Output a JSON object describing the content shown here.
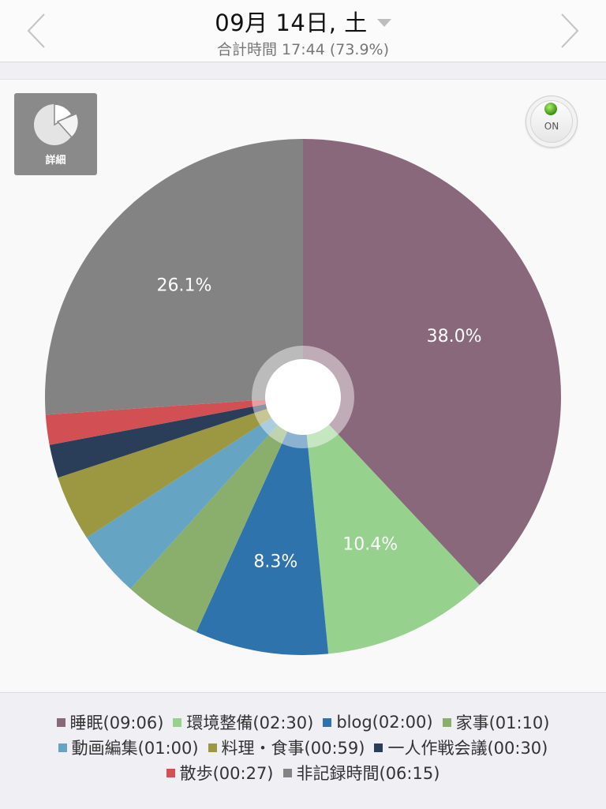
{
  "header": {
    "date": "09月 14日, 土",
    "total": "合計時間 17:44 (73.9%)"
  },
  "buttons": {
    "detail_label": "詳細",
    "on_label": "ON"
  },
  "chart_data": {
    "type": "pie",
    "categories": [
      "睡眠",
      "環境整備",
      "blog",
      "家事",
      "動画編集",
      "料理・食事",
      "一人作戦会議",
      "散歩",
      "非記録時間"
    ],
    "durations": [
      "09:06",
      "02:30",
      "02:00",
      "01:10",
      "01:00",
      "00:59",
      "00:30",
      "00:27",
      "06:15"
    ],
    "values": [
      546,
      150,
      120,
      70,
      60,
      59,
      30,
      27,
      375
    ],
    "percent_labels": [
      "38.0%",
      "10.4%",
      "8.3%",
      "",
      "",
      "",
      "",
      "",
      "26.1%"
    ],
    "colors": [
      "#8a687c",
      "#97d18e",
      "#2f73ac",
      "#8aaf6c",
      "#66a4c3",
      "#9c9842",
      "#2a3e5a",
      "#d24f54",
      "#838383"
    ],
    "legend_placement": "bottom"
  },
  "legend": {
    "rows": [
      [
        {
          "label": "睡眠(09:06)",
          "color": "#8a687c"
        },
        {
          "label": "環境整備(02:30)",
          "color": "#97d18e"
        },
        {
          "label": "blog(02:00)",
          "color": "#2f73ac"
        },
        {
          "label": "家事(01:10)",
          "color": "#8aaf6c"
        }
      ],
      [
        {
          "label": "動画編集(01:00)",
          "color": "#66a4c3"
        },
        {
          "label": "料理・食事(00:59)",
          "color": "#9c9842"
        },
        {
          "label": "一人作戦会議(00:30)",
          "color": "#2a3e5a"
        }
      ],
      [
        {
          "label": "散歩(00:27)",
          "color": "#d24f54"
        },
        {
          "label": "非記録時間(06:15)",
          "color": "#838383"
        }
      ]
    ]
  },
  "icons": {
    "prev": "chevron-left-icon",
    "next": "chevron-right-icon",
    "dropdown": "caret-down-icon",
    "detail": "pie-chart-icon",
    "on": "power-led-icon"
  }
}
